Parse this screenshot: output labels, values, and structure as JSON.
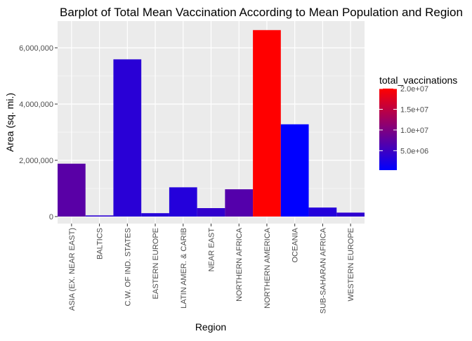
{
  "chart_data": {
    "type": "bar",
    "title": "Barplot of Total Mean Vaccination According to Mean Population and Region",
    "xlabel": "Region",
    "ylabel": "Area (sq. mi.)",
    "categories": [
      "ASIA (EX. NEAR EAST)",
      "BALTICS",
      "C.W. OF IND. STATES",
      "EASTERN EUROPE",
      "LATIN AMER. & CARIB",
      "NEAR EAST",
      "NORTHERN AFRICA",
      "NORTHERN AMERICA",
      "OCEANIA",
      "SUB-SAHARAN AFRICA",
      "WESTERN EUROPE"
    ],
    "values": [
      1880000,
      40000,
      5590000,
      120000,
      1040000,
      300000,
      970000,
      6630000,
      3280000,
      320000,
      140000
    ],
    "fill_values": [
      7200000,
      3800000,
      3500000,
      3200000,
      3100000,
      4200000,
      6800000,
      20000000,
      300000,
      3100000,
      3900000
    ],
    "ylim": [
      -250000,
      6950000
    ],
    "y_ticks": [
      0,
      2000000,
      4000000,
      6000000
    ],
    "y_tick_labels": [
      "0",
      "2,000,000",
      "4,000,000",
      "6,000,000"
    ],
    "grid": true,
    "legend": {
      "title": "total_vaccinations",
      "position": "right",
      "range": [
        300000,
        20000000
      ],
      "breaks": [
        5000000,
        10000000,
        15000000,
        20000000
      ],
      "break_labels": [
        "5.0e+06",
        "1.0e+07",
        "1.5e+07",
        "2.0e+07"
      ],
      "low_color": "#0000ff",
      "high_color": "#ff0000"
    },
    "panel_background": "#ebebeb",
    "grid_color": "#ffffff"
  }
}
